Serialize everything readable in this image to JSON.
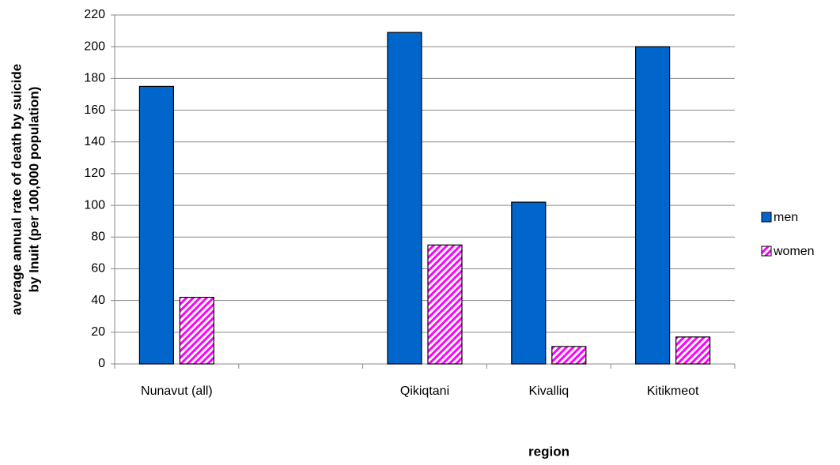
{
  "chart_data": {
    "type": "bar",
    "ylabel": [
      "average annual rate of death by suicide",
      "by Inuit (per 100,000 population)"
    ],
    "xlabel": "region",
    "categories": [
      "Nunavut (all)",
      null,
      "Qikiqtani",
      "Kivalliq",
      "Kitikmeot"
    ],
    "series": [
      {
        "name": "men",
        "color": "#0066cc",
        "pattern": "solid",
        "values": [
          175,
          null,
          209,
          102,
          200
        ]
      },
      {
        "name": "women",
        "color": "#ff00ff",
        "pattern": "hatch",
        "values": [
          42,
          null,
          75,
          11,
          17
        ]
      }
    ],
    "ylim": [
      0,
      220
    ],
    "yticks": [
      0,
      20,
      40,
      60,
      80,
      100,
      120,
      140,
      160,
      180,
      200,
      220
    ],
    "grid": true,
    "legend": "right"
  }
}
